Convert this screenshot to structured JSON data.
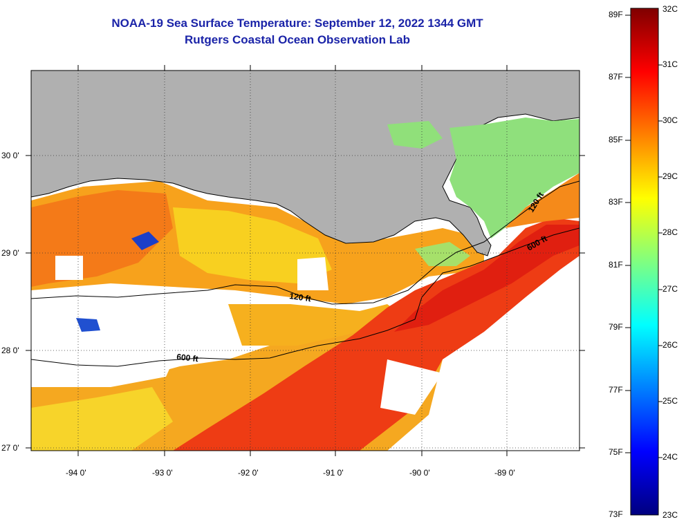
{
  "title": {
    "line1": "NOAA-19 Sea Surface Temperature:  September 12, 2022 1344 GMT",
    "line2": "Rutgers Coastal Ocean Observation Lab"
  },
  "map": {
    "lon_labels": [
      "-94 0'",
      "-93 0'",
      "-92 0'",
      "-91 0'",
      "-90 0'",
      "-89 0'"
    ],
    "lat_labels": [
      "30 0'",
      "29 0'",
      "28 0'",
      "27 0'"
    ],
    "contour_labels": [
      "120 ft",
      "600 ft",
      "120 ft",
      "600 ft"
    ],
    "colors": {
      "land": "#b0b0b0",
      "cloud": "#ffffff"
    }
  },
  "colorbar": {
    "fahrenheit": [
      "89F",
      "87F",
      "85F",
      "83F",
      "81F",
      "79F",
      "77F",
      "75F",
      "73F"
    ],
    "celsius": [
      "32C",
      "31C",
      "30C",
      "29C",
      "28C",
      "27C",
      "26C",
      "25C",
      "24C",
      "23C"
    ],
    "stops": [
      "#00007f",
      "#0000ff",
      "#0080ff",
      "#00ffff",
      "#80ff80",
      "#ffff00",
      "#ff8000",
      "#ff0000",
      "#7f0000"
    ]
  }
}
